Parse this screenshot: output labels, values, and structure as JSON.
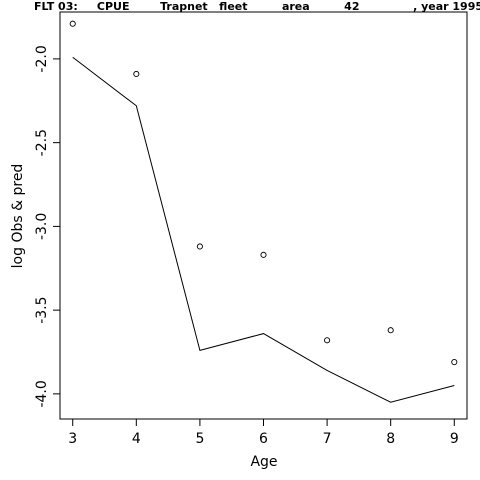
{
  "chart_data": {
    "type": "line",
    "title": "FLT 03:     CPUE        Trapnet   fleet         area         42              , year 1995",
    "xlabel": "Age",
    "ylabel": "log Obs & pred",
    "xlim": [
      2.8,
      9.2
    ],
    "ylim": [
      -4.15,
      -1.72
    ],
    "x_ticks": [
      3,
      4,
      5,
      6,
      7,
      8,
      9
    ],
    "y_ticks": [
      -2.0,
      -2.5,
      -3.0,
      -3.5,
      -4.0
    ],
    "y_tick_labels": [
      "-2.0",
      "-2.5",
      "-3.0",
      "-3.5",
      "-4.0"
    ],
    "grid": false,
    "x": [
      3,
      4,
      5,
      6,
      7,
      8,
      9
    ],
    "series": [
      {
        "style": "points",
        "values": [
          -1.79,
          -2.09,
          -3.12,
          -3.17,
          -3.68,
          -3.62,
          -3.81
        ]
      },
      {
        "style": "line",
        "values": [
          -1.99,
          -2.28,
          -3.74,
          -3.64,
          -3.86,
          -4.05,
          -3.95
        ]
      }
    ],
    "colors": {
      "ink": "#000000",
      "background": "#ffffff"
    }
  }
}
